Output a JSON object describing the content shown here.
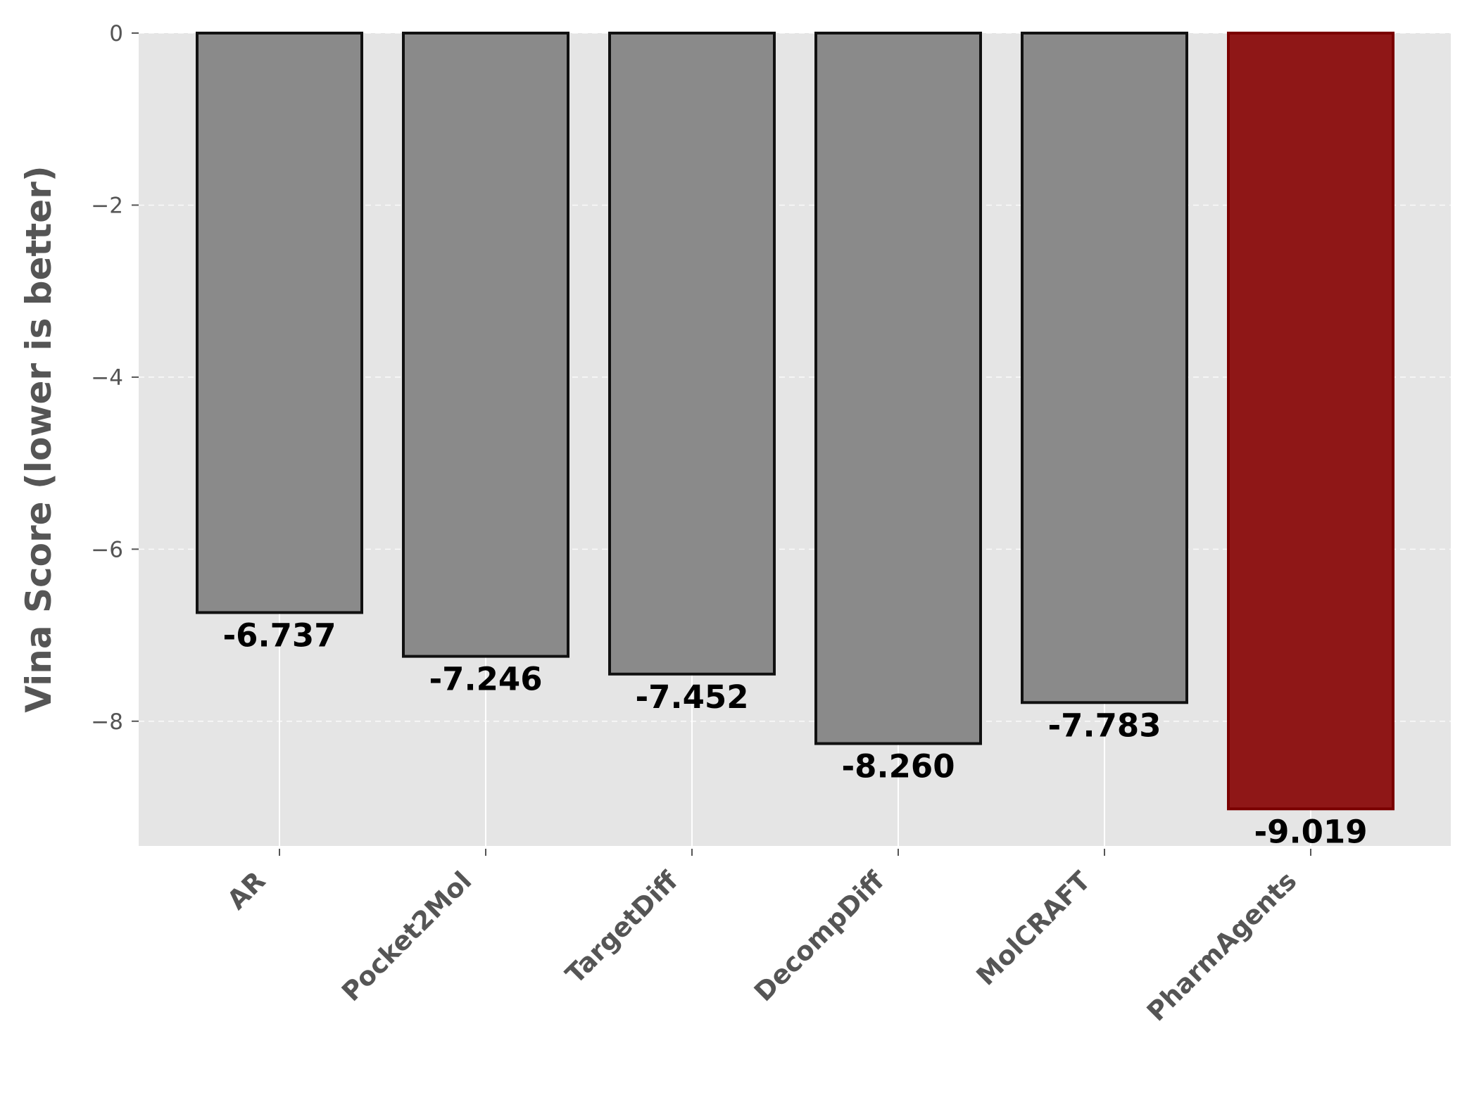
{
  "chart_data": {
    "type": "bar",
    "title": "",
    "xlabel": "",
    "ylabel": "Vina Score (lower is better)",
    "categories": [
      "AR",
      "Pocket2Mol",
      "TargetDiff",
      "DecompDiff",
      "MolCRAFT",
      "PharmAgents"
    ],
    "values": [
      -6.737,
      -7.246,
      -7.452,
      -8.26,
      -7.783,
      -9.019
    ],
    "value_labels": [
      "-6.737",
      "-7.246",
      "-7.452",
      "-8.260",
      "-7.783",
      "-9.019"
    ],
    "ylim": [
      -9.45,
      0
    ],
    "yticks": [
      0,
      -2,
      -4,
      -6,
      -8
    ],
    "ytick_labels": [
      "0",
      "−2",
      "−4",
      "−6",
      "−8"
    ],
    "grid": true,
    "colors": {
      "default_bar": "#8a8a8a",
      "highlight_bar": "#8f1717",
      "highlight_edge": "#7a0000",
      "bar_edge": "#111111",
      "plot_background": "#e5e5e5"
    },
    "highlight_index": 5
  }
}
